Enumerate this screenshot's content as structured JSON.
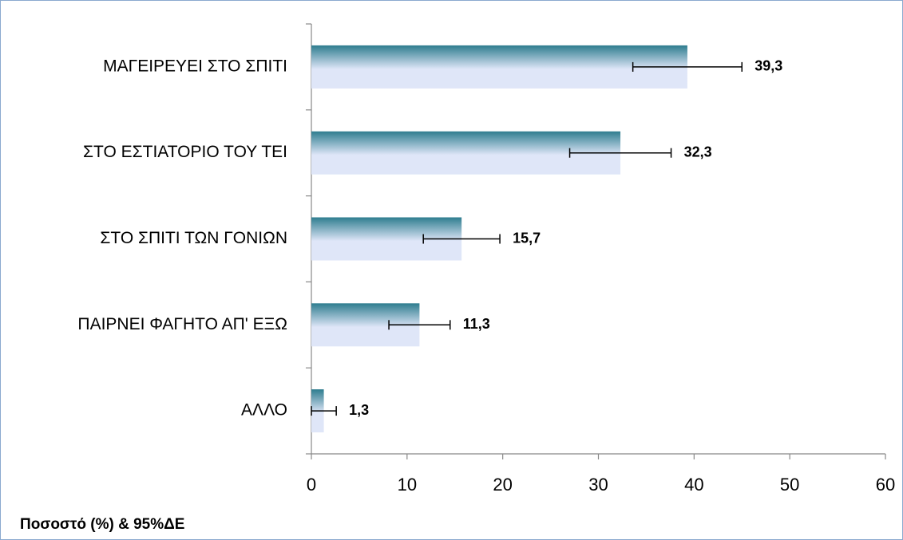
{
  "chart_data": {
    "type": "bar",
    "orientation": "horizontal",
    "categories": [
      "ΜΑΓΕΙΡΕΥΕΙ ΣΤΟ ΣΠΙΤΙ",
      "ΣΤΟ ΕΣΤΙΑΤΟΡΙΟ ΤΟΥ ΤΕΙ",
      "ΣΤΟ ΣΠΙΤΙ ΤΩΝ ΓΟΝΙΩΝ",
      "ΠΑΙΡΝΕΙ ΦΑΓΗΤΟ ΑΠ' ΕΞΩ",
      "ΑΛΛΟ"
    ],
    "values": [
      39.3,
      32.3,
      15.7,
      11.3,
      1.3
    ],
    "value_labels": [
      "39,3",
      "32,3",
      "15,7",
      "11,3",
      "1,3"
    ],
    "errors": [
      5.7,
      5.3,
      4.0,
      3.2,
      1.3
    ],
    "gradient": [
      "#2e7d8f",
      "#dfe6f8"
    ],
    "xlim": [
      0,
      60
    ],
    "xticks": [
      0,
      10,
      20,
      30,
      40,
      50,
      60
    ],
    "xlabel": "Ποσοστό (%) & 95%ΔΕ",
    "grid": false
  }
}
